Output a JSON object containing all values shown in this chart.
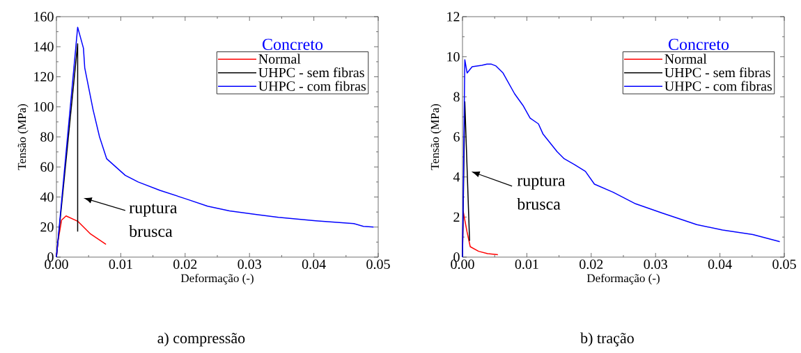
{
  "chart_data": [
    {
      "type": "line",
      "title": "a) compressão",
      "xlabel": "Deformação (-)",
      "ylabel": "Tensão (MPa)",
      "legend_title": "Concreto",
      "legend": "top right",
      "xlim": [
        0,
        0.05
      ],
      "ylim": [
        0,
        160
      ],
      "xticks": [
        {
          "value": 0,
          "label": "0.00"
        },
        0.01,
        0.02,
        0.03,
        0.04,
        0.05
      ],
      "yticks": [
        0,
        20,
        40,
        60,
        80,
        100,
        120,
        140,
        160
      ],
      "annotations": [
        "ruptura brusca"
      ],
      "series": [
        {
          "name": "Normal",
          "color": "#ff0000",
          "x": [
            0,
            0.00025,
            0.0008,
            0.0015,
            0.0033,
            0.0053,
            0.0077
          ],
          "values": [
            0,
            10.8,
            24.6,
            27.4,
            23.9,
            15.4,
            8.5
          ]
        },
        {
          "name": "UHPC - sem fibras",
          "color": "#000000",
          "x": [
            0,
            0.0033,
            0.0033
          ],
          "values": [
            0,
            142,
            17
          ]
        },
        {
          "name": "UHPC - com fibras",
          "color": "#0000ff",
          "x": [
            0,
            0.0033,
            0.0042,
            0.0044,
            0.0057,
            0.0067,
            0.0078,
            0.0107,
            0.0127,
            0.0161,
            0.0201,
            0.0235,
            0.0269,
            0.0313,
            0.0345,
            0.0403,
            0.0462,
            0.0477,
            0.0493
          ],
          "values": [
            0,
            153,
            139,
            126,
            98,
            80,
            65.5,
            54.4,
            50,
            44.4,
            38.8,
            33.9,
            30.8,
            28.2,
            26.5,
            24.2,
            22.3,
            20.5,
            20
          ]
        }
      ]
    },
    {
      "type": "line",
      "title": "b) tração",
      "xlabel": "Deformação (-)",
      "ylabel": "Tensão (MPa)",
      "legend_title": "Concreto",
      "legend": "top right",
      "xlim": [
        0,
        0.05
      ],
      "ylim": [
        0,
        12
      ],
      "xticks": [
        {
          "value": 0,
          "label": "0.00"
        },
        0.01,
        0.02,
        0.03,
        0.04,
        0.05
      ],
      "yticks": [
        0,
        2,
        4,
        6,
        8,
        10,
        12
      ],
      "annotations": [
        "ruptura brusca"
      ],
      "series": [
        {
          "name": "Normal",
          "color": "#ff0000",
          "x": [
            0,
            0.0001,
            0.0007,
            0.0012,
            0.0025,
            0.0039,
            0.0055
          ],
          "values": [
            0,
            2.3,
            1.27,
            0.52,
            0.29,
            0.17,
            0.12
          ]
        },
        {
          "name": "UHPC - sem fibras",
          "color": "#000000",
          "x": [
            0,
            0.00036,
            0.0011
          ],
          "values": [
            0,
            7.75,
            0.81
          ]
        },
        {
          "name": "UHPC - com fibras",
          "color": "#0000ff",
          "x": [
            0,
            0.00036,
            0.00072,
            0.0015,
            0.003,
            0.0038,
            0.0045,
            0.0052,
            0.0063,
            0.0081,
            0.0094,
            0.0105,
            0.0118,
            0.0125,
            0.0147,
            0.0158,
            0.0174,
            0.0191,
            0.0205,
            0.0234,
            0.0269,
            0.031,
            0.0364,
            0.0404,
            0.0451,
            0.0493
          ],
          "values": [
            0,
            9.85,
            9.19,
            9.5,
            9.57,
            9.63,
            9.63,
            9.54,
            9.19,
            8.15,
            7.57,
            6.94,
            6.65,
            6.15,
            5.26,
            4.91,
            4.62,
            4.28,
            3.64,
            3.24,
            2.66,
            2.2,
            1.62,
            1.35,
            1.13,
            0.77
          ]
        }
      ]
    }
  ]
}
